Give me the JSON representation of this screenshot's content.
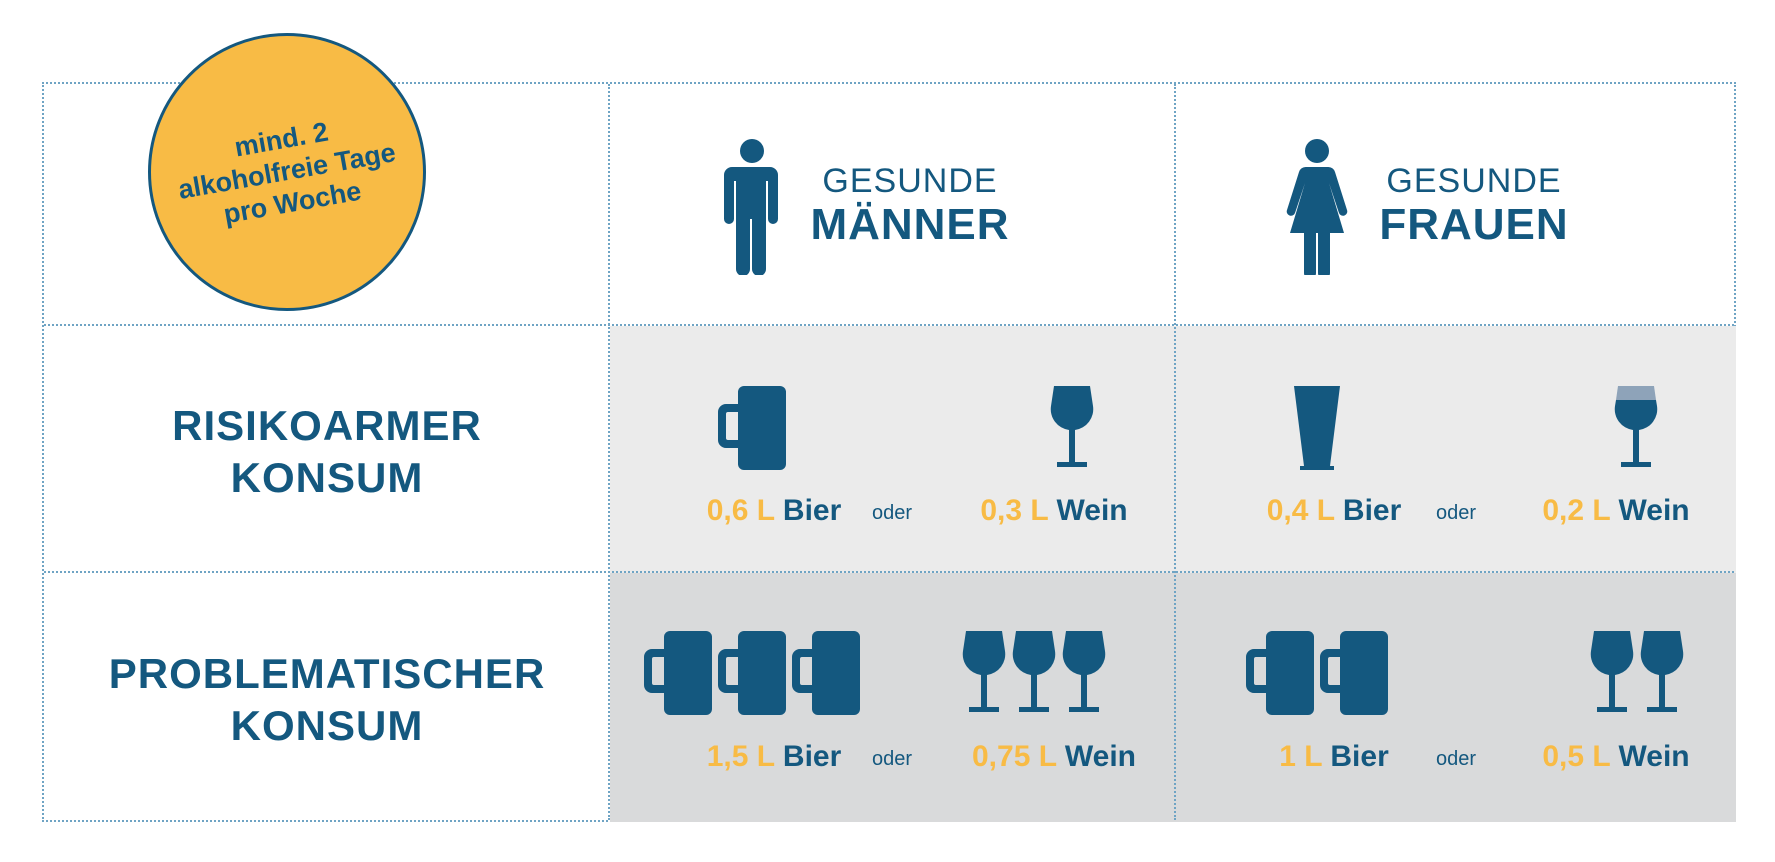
{
  "badge": {
    "lines": [
      "mind. 2",
      "alkoholfreie Tage",
      "pro Woche"
    ]
  },
  "columns": [
    {
      "sub": "GESUNDE",
      "main": "MÄNNER",
      "icon": "man-icon"
    },
    {
      "sub": "GESUNDE",
      "main": "FRAUEN",
      "icon": "woman-icon"
    }
  ],
  "rows": [
    {
      "label_lines": [
        "RISIKOARMER",
        "KONSUM"
      ]
    },
    {
      "label_lines": [
        "PROBLEMATISCHER",
        "KONSUM"
      ]
    }
  ],
  "cells": {
    "risk_low_men": {
      "beer_amount": "0,6 L",
      "beer_label": "Bier",
      "connector": "oder",
      "wine_amount": "0,3 L",
      "wine_label": "Wein",
      "beer_icon": "beer-mug-icon",
      "beer_count": 1,
      "wine_icon": "wine-glass-icon",
      "wine_count": 1
    },
    "risk_low_women": {
      "beer_amount": "0,4 L",
      "beer_label": "Bier",
      "connector": "oder",
      "wine_amount": "0,2 L",
      "wine_label": "Wein",
      "beer_icon": "beer-glass-icon",
      "beer_count": 1,
      "wine_icon": "wine-glass-partial-icon",
      "wine_count": 1
    },
    "problem_men": {
      "beer_amount": "1,5 L",
      "beer_label": "Bier",
      "connector": "oder",
      "wine_amount": "0,75 L",
      "wine_label": "Wein",
      "beer_icon": "beer-mug-icon",
      "beer_count": 3,
      "wine_icon": "wine-glass-icon",
      "wine_count": 3
    },
    "problem_women": {
      "beer_amount": "1 L",
      "beer_label": "Bier",
      "connector": "oder",
      "wine_amount": "0,5 L",
      "wine_label": "Wein",
      "beer_icon": "beer-mug-icon",
      "beer_count": 2,
      "wine_icon": "wine-glass-icon",
      "wine_count": 2
    }
  },
  "colors": {
    "primary": "#14587f",
    "accent": "#f8bb45",
    "cell_light": "#ebebeb",
    "cell_dark": "#d9dadb",
    "wine_fill_top": "#8ea3b9"
  }
}
